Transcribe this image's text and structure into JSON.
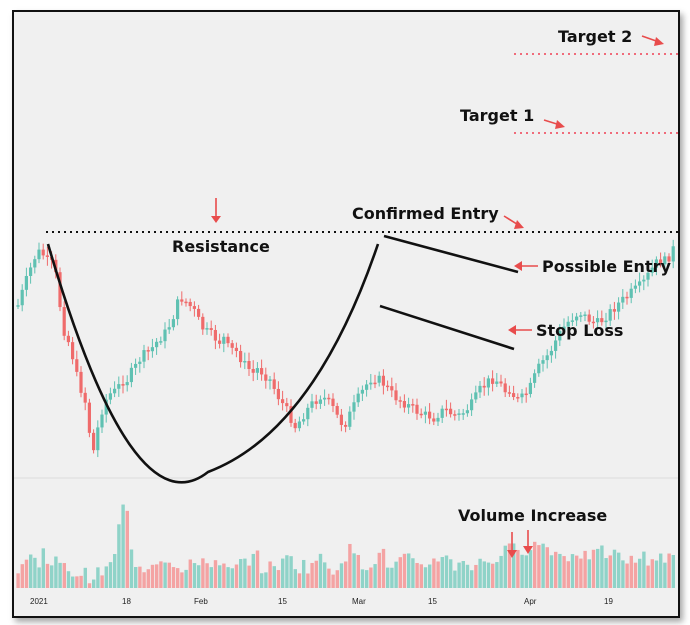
{
  "chart_data": {
    "type": "candlestick",
    "title": "",
    "xlabel": "",
    "ylabel": "",
    "grid": false,
    "pattern": "cup and handle",
    "colors": {
      "up": "#5fc1b2",
      "down": "#ef6b6b",
      "volume_up": "#8fd3c8",
      "volume_down": "#f4a3a3",
      "level": "#f06b7a",
      "annotation_arrow": "#e84c4c"
    },
    "x_tick_labels": [
      "2021",
      "18",
      "Feb",
      "15",
      "Mar",
      "15",
      "Apr",
      "19"
    ],
    "annotations": {
      "resistance": "Resistance",
      "confirmed_entry": "Confirmed Entry",
      "possible_entry": "Possible Entry",
      "stop_loss": "Stop Loss",
      "target_1": "Target 1",
      "target_2": "Target 2",
      "volume_increase": "Volume Increase"
    },
    "price_series": [
      [
        2,
        300
      ],
      [
        5,
        290
      ],
      [
        10,
        275
      ],
      [
        16,
        258
      ],
      [
        20,
        247
      ],
      [
        24,
        240
      ],
      [
        28,
        241
      ],
      [
        32,
        247
      ],
      [
        36,
        254
      ],
      [
        40,
        248
      ],
      [
        42,
        265
      ],
      [
        44,
        280
      ],
      [
        47,
        300
      ],
      [
        50,
        318
      ],
      [
        53,
        332
      ],
      [
        56,
        327
      ],
      [
        58,
        340
      ],
      [
        60,
        355
      ],
      [
        64,
        368
      ],
      [
        68,
        380
      ],
      [
        72,
        392
      ],
      [
        74,
        410
      ],
      [
        77,
        430
      ],
      [
        80,
        440
      ],
      [
        82,
        428
      ],
      [
        84,
        415
      ],
      [
        88,
        398
      ],
      [
        92,
        388
      ],
      [
        96,
        382
      ],
      [
        100,
        380
      ],
      [
        104,
        376
      ],
      [
        108,
        368
      ],
      [
        112,
        370
      ],
      [
        116,
        362
      ],
      [
        120,
        358
      ],
      [
        124,
        350
      ],
      [
        128,
        344
      ],
      [
        132,
        342
      ],
      [
        136,
        338
      ],
      [
        140,
        334
      ],
      [
        144,
        328
      ],
      [
        148,
        324
      ],
      [
        152,
        320
      ],
      [
        158,
        308
      ],
      [
        162,
        296
      ],
      [
        166,
        285
      ],
      [
        170,
        288
      ],
      [
        174,
        292
      ],
      [
        178,
        296
      ],
      [
        182,
        302
      ],
      [
        186,
        312
      ],
      [
        190,
        318
      ],
      [
        196,
        322
      ],
      [
        200,
        325
      ],
      [
        206,
        330
      ],
      [
        210,
        326
      ],
      [
        216,
        340
      ],
      [
        220,
        336
      ],
      [
        226,
        345
      ],
      [
        230,
        352
      ],
      [
        236,
        358
      ],
      [
        240,
        362
      ],
      [
        244,
        356
      ],
      [
        250,
        362
      ],
      [
        256,
        368
      ],
      [
        260,
        376
      ],
      [
        264,
        384
      ],
      [
        270,
        394
      ],
      [
        276,
        404
      ],
      [
        282,
        416
      ],
      [
        286,
        408
      ],
      [
        290,
        402
      ],
      [
        296,
        394
      ],
      [
        302,
        388
      ],
      [
        306,
        384
      ],
      [
        310,
        386
      ],
      [
        316,
        392
      ],
      [
        320,
        398
      ],
      [
        324,
        406
      ],
      [
        330,
        414
      ],
      [
        336,
        402
      ],
      [
        342,
        390
      ],
      [
        348,
        380
      ],
      [
        352,
        374
      ],
      [
        354,
        369
      ],
      [
        356,
        367
      ],
      [
        360,
        366
      ],
      [
        364,
        367
      ],
      [
        368,
        370
      ],
      [
        372,
        374
      ],
      [
        376,
        380
      ],
      [
        380,
        384
      ],
      [
        386,
        388
      ],
      [
        392,
        392
      ],
      [
        398,
        396
      ],
      [
        404,
        400
      ],
      [
        410,
        403
      ],
      [
        416,
        404
      ],
      [
        420,
        406
      ],
      [
        426,
        400
      ],
      [
        432,
        398
      ],
      [
        438,
        402
      ],
      [
        444,
        404
      ],
      [
        450,
        400
      ],
      [
        458,
        392
      ],
      [
        466,
        378
      ],
      [
        474,
        370
      ],
      [
        480,
        366
      ],
      [
        486,
        372
      ],
      [
        492,
        380
      ],
      [
        496,
        376
      ],
      [
        500,
        384
      ],
      [
        504,
        388
      ],
      [
        508,
        386
      ],
      [
        512,
        382
      ],
      [
        516,
        376
      ],
      [
        520,
        366
      ],
      [
        524,
        358
      ],
      [
        526,
        352
      ],
      [
        530,
        348
      ],
      [
        536,
        340
      ],
      [
        540,
        332
      ],
      [
        544,
        324
      ],
      [
        548,
        318
      ],
      [
        552,
        312
      ],
      [
        556,
        308
      ],
      [
        560,
        304
      ],
      [
        566,
        300
      ],
      [
        570,
        304
      ],
      [
        576,
        308
      ],
      [
        582,
        312
      ],
      [
        588,
        308
      ],
      [
        594,
        302
      ],
      [
        600,
        296
      ],
      [
        606,
        290
      ],
      [
        612,
        286
      ],
      [
        618,
        280
      ],
      [
        624,
        276
      ],
      [
        630,
        270
      ],
      [
        636,
        260
      ],
      [
        640,
        254
      ],
      [
        645,
        248
      ],
      [
        650,
        250
      ],
      [
        654,
        246
      ],
      [
        658,
        240
      ],
      [
        662,
        230
      ]
    ],
    "volume_series": [
      [
        6,
        22
      ],
      [
        10,
        26
      ],
      [
        14,
        30
      ],
      [
        18,
        34
      ],
      [
        24,
        20
      ],
      [
        30,
        40
      ],
      [
        36,
        24
      ],
      [
        42,
        28
      ],
      [
        48,
        18
      ],
      [
        54,
        22
      ],
      [
        60,
        12
      ],
      [
        66,
        16
      ],
      [
        72,
        14
      ],
      [
        78,
        10
      ],
      [
        84,
        14
      ],
      [
        90,
        18
      ],
      [
        96,
        20
      ],
      [
        102,
        42
      ],
      [
        106,
        68
      ],
      [
        108,
        76
      ],
      [
        112,
        92
      ],
      [
        116,
        38
      ],
      [
        120,
        28
      ],
      [
        124,
        24
      ],
      [
        128,
        20
      ],
      [
        134,
        22
      ],
      [
        140,
        30
      ],
      [
        146,
        26
      ],
      [
        152,
        32
      ],
      [
        158,
        28
      ],
      [
        164,
        18
      ],
      [
        170,
        14
      ],
      [
        176,
        22
      ],
      [
        182,
        26
      ],
      [
        188,
        30
      ],
      [
        194,
        24
      ],
      [
        200,
        28
      ],
      [
        206,
        18
      ],
      [
        212,
        20
      ],
      [
        218,
        16
      ],
      [
        224,
        22
      ],
      [
        230,
        26
      ],
      [
        236,
        30
      ],
      [
        242,
        34
      ],
      [
        248,
        20
      ],
      [
        254,
        18
      ],
      [
        260,
        26
      ],
      [
        266,
        22
      ],
      [
        272,
        28
      ],
      [
        278,
        32
      ],
      [
        284,
        18
      ],
      [
        290,
        24
      ],
      [
        296,
        20
      ],
      [
        302,
        30
      ],
      [
        308,
        28
      ],
      [
        314,
        22
      ],
      [
        320,
        18
      ],
      [
        326,
        26
      ],
      [
        332,
        34
      ],
      [
        338,
        40
      ],
      [
        344,
        28
      ],
      [
        350,
        22
      ],
      [
        356,
        26
      ],
      [
        362,
        30
      ],
      [
        368,
        36
      ],
      [
        374,
        24
      ],
      [
        380,
        20
      ],
      [
        386,
        28
      ],
      [
        392,
        32
      ],
      [
        398,
        24
      ],
      [
        404,
        18
      ],
      [
        410,
        22
      ],
      [
        416,
        26
      ],
      [
        422,
        30
      ],
      [
        428,
        34
      ],
      [
        434,
        28
      ],
      [
        440,
        22
      ],
      [
        446,
        26
      ],
      [
        452,
        30
      ],
      [
        458,
        20
      ],
      [
        464,
        24
      ],
      [
        470,
        28
      ],
      [
        476,
        26
      ],
      [
        482,
        30
      ],
      [
        488,
        34
      ],
      [
        494,
        38
      ],
      [
        500,
        40
      ],
      [
        506,
        44
      ],
      [
        510,
        36
      ],
      [
        514,
        42
      ],
      [
        518,
        40
      ],
      [
        524,
        46
      ],
      [
        530,
        42
      ],
      [
        536,
        40
      ],
      [
        542,
        36
      ],
      [
        548,
        32
      ],
      [
        554,
        30
      ],
      [
        560,
        40
      ],
      [
        566,
        34
      ],
      [
        572,
        30
      ],
      [
        578,
        36
      ],
      [
        584,
        32
      ],
      [
        590,
        38
      ],
      [
        596,
        30
      ],
      [
        602,
        34
      ],
      [
        608,
        30
      ],
      [
        614,
        28
      ],
      [
        620,
        26
      ],
      [
        626,
        32
      ],
      [
        632,
        30
      ],
      [
        638,
        28
      ],
      [
        644,
        34
      ],
      [
        650,
        30
      ],
      [
        656,
        28
      ],
      [
        660,
        32
      ]
    ]
  }
}
